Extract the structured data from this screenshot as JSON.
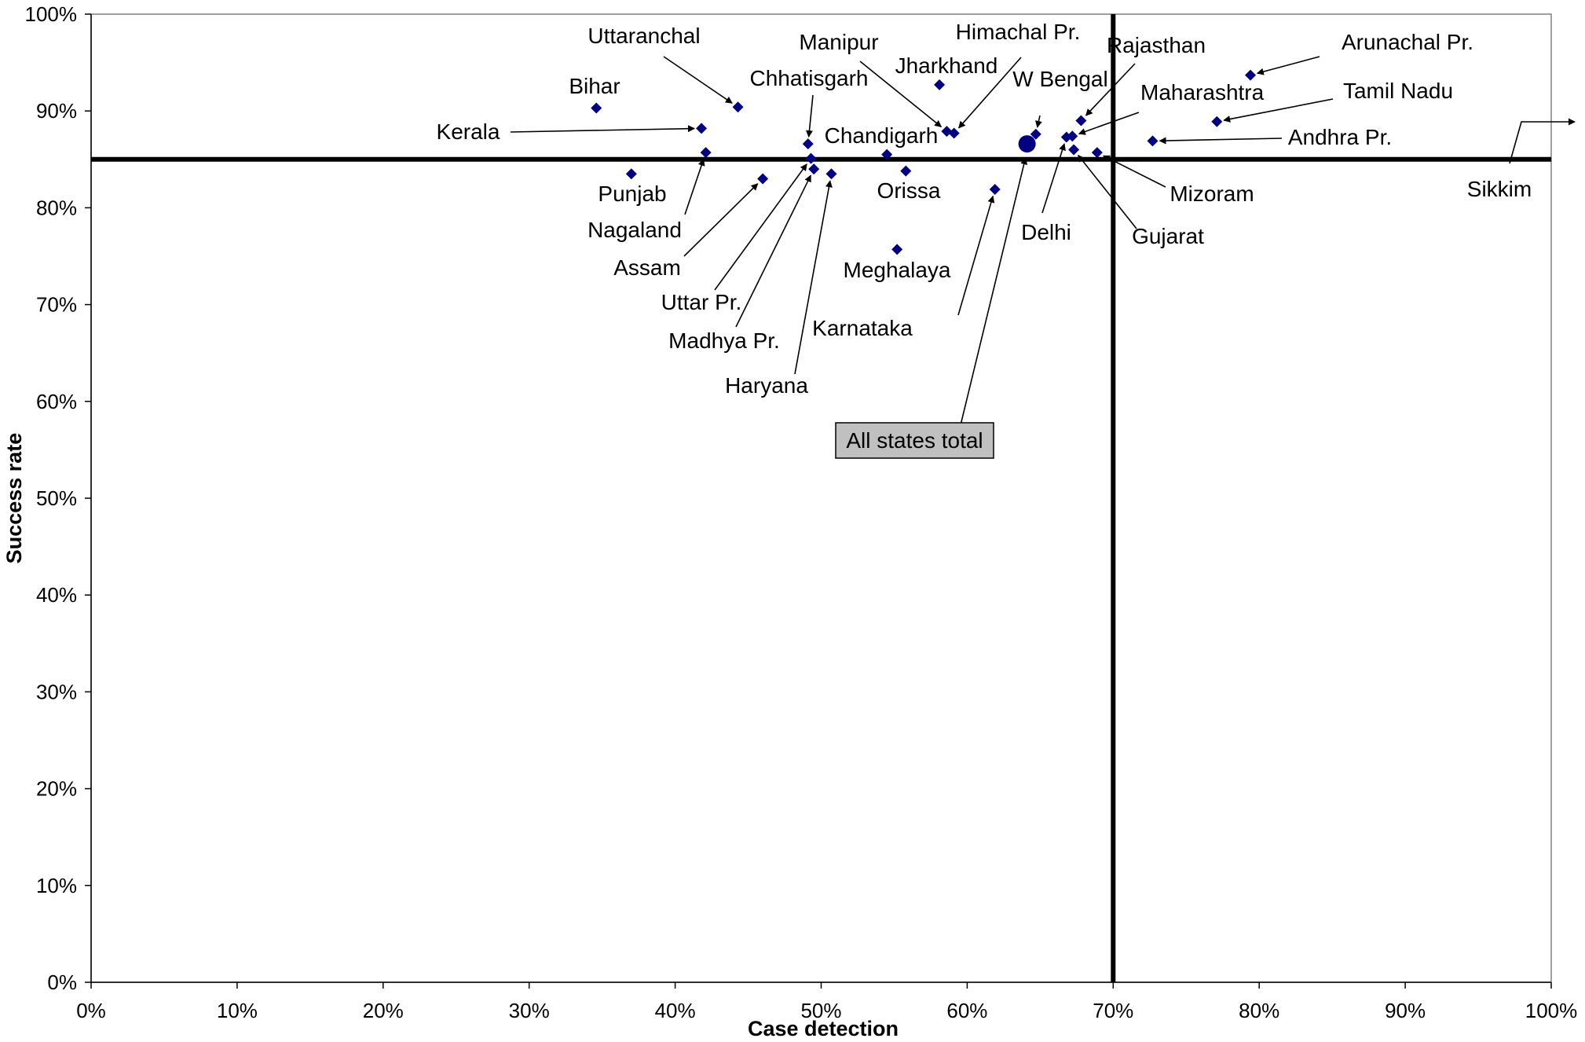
{
  "chart_data": {
    "type": "scatter",
    "xlabel": "Case detection",
    "ylabel": "Success rate",
    "xlim": [
      0,
      100
    ],
    "ylim": [
      0,
      100
    ],
    "x_ticks": [
      "0%",
      "10%",
      "20%",
      "30%",
      "40%",
      "50%",
      "60%",
      "70%",
      "80%",
      "90%",
      "100%"
    ],
    "y_ticks": [
      "0%",
      "10%",
      "20%",
      "30%",
      "40%",
      "50%",
      "60%",
      "70%",
      "80%",
      "90%",
      "100%"
    ],
    "grid": false,
    "marker_color": "#000080",
    "reference_lines": {
      "x": 70,
      "y": 85
    },
    "summary_point": {
      "label": "All states total",
      "x": 64.1,
      "y": 86.6
    },
    "points": [
      {
        "label": "Bihar",
        "x": 34.6,
        "y": 90.3
      },
      {
        "label": "Uttaranchal",
        "x": 44.3,
        "y": 90.4
      },
      {
        "label": "Kerala",
        "x": 41.8,
        "y": 88.2
      },
      {
        "label": "Nagaland",
        "x": 42.1,
        "y": 85.7
      },
      {
        "label": "Punjab",
        "x": 37.0,
        "y": 83.5
      },
      {
        "label": "Assam",
        "x": 46.0,
        "y": 83.0
      },
      {
        "label": "Chhatisgarh",
        "x": 49.1,
        "y": 86.6
      },
      {
        "label": "Uttar Pr.",
        "x": 49.3,
        "y": 85.1
      },
      {
        "label": "Madhya Pr.",
        "x": 49.5,
        "y": 84.0
      },
      {
        "label": "Haryana",
        "x": 50.7,
        "y": 83.5
      },
      {
        "label": "Chandigarh",
        "x": 54.5,
        "y": 85.5
      },
      {
        "label": "Orissa",
        "x": 55.8,
        "y": 83.8
      },
      {
        "label": "Meghalaya",
        "x": 55.2,
        "y": 75.7
      },
      {
        "label": "Jharkhand",
        "x": 58.1,
        "y": 92.7
      },
      {
        "label": "Manipur",
        "x": 58.6,
        "y": 87.9
      },
      {
        "label": "Himachal Pr.",
        "x": 59.1,
        "y": 87.7
      },
      {
        "label": "Karnataka",
        "x": 61.9,
        "y": 81.9
      },
      {
        "label": "W Bengal",
        "x": 64.7,
        "y": 87.6
      },
      {
        "label": "Delhi",
        "x": 66.8,
        "y": 87.3
      },
      {
        "label": "Maharashtra",
        "x": 67.2,
        "y": 87.4
      },
      {
        "label": "Gujarat",
        "x": 67.3,
        "y": 86.0
      },
      {
        "label": "Rajasthan",
        "x": 67.8,
        "y": 89.0
      },
      {
        "label": "Mizoram",
        "x": 68.9,
        "y": 85.7
      },
      {
        "label": "Andhra Pr.",
        "x": 72.7,
        "y": 86.9
      },
      {
        "label": "Tamil Nadu",
        "x": 77.1,
        "y": 88.9
      },
      {
        "label": "Arunachal Pr.",
        "x": 79.4,
        "y": 93.7
      },
      {
        "label": "Sikkim",
        "x": 103.5,
        "y": 89.0
      }
    ]
  }
}
